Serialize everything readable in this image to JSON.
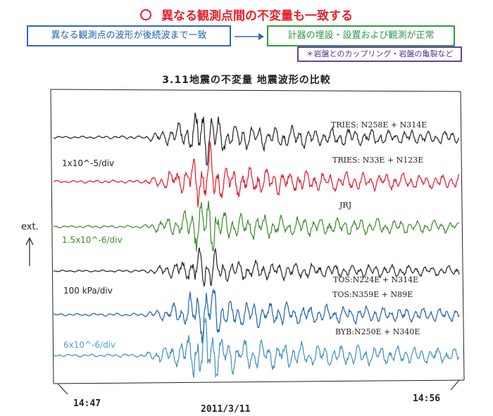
{
  "header": {
    "headline": "異なる観測点間の不変量も一致する",
    "left_box": "異なる観測点の波形が後続波まで一致",
    "right_box": "計器の埋設・設置および観測が正常",
    "note": "＊岩盤とのカップリング・岩盤の亀裂など"
  },
  "colors": {
    "red": "#e8202a",
    "blue_box": "#3566b3",
    "green_box": "#2f9a46",
    "purple_note": "#6a3ea6"
  },
  "chart_data": {
    "type": "line",
    "title": "3.11地震の不変量 地震波形の比較",
    "ylabel": "ext.",
    "x_start_label": "14:47",
    "x_end_label": "14:56",
    "date_label": "2011/3/11",
    "scales": [
      {
        "label": "1x10^-5/div",
        "color": "#222222"
      },
      {
        "label": "1.5x10^-6/div",
        "color": "#3a8a2a"
      },
      {
        "label": "100 kPa/div",
        "color": "#222222"
      },
      {
        "label": "6x10^-6/div",
        "color": "#4aa3c8"
      }
    ],
    "series": [
      {
        "name": "TRIES: N258E + N314E",
        "color": "#222222"
      },
      {
        "name": "TRIES: N33E + N123E",
        "color": "#e0182a"
      },
      {
        "name": "JRJ",
        "color": "#3a8a2a"
      },
      {
        "name": "TOS:N224E + N314E",
        "color": "#222222"
      },
      {
        "name": "TOS:N359E + N89E",
        "color": "#2060b0"
      },
      {
        "name": "BYB:N250E + N340E",
        "color": "#3f8fc0"
      }
    ]
  }
}
